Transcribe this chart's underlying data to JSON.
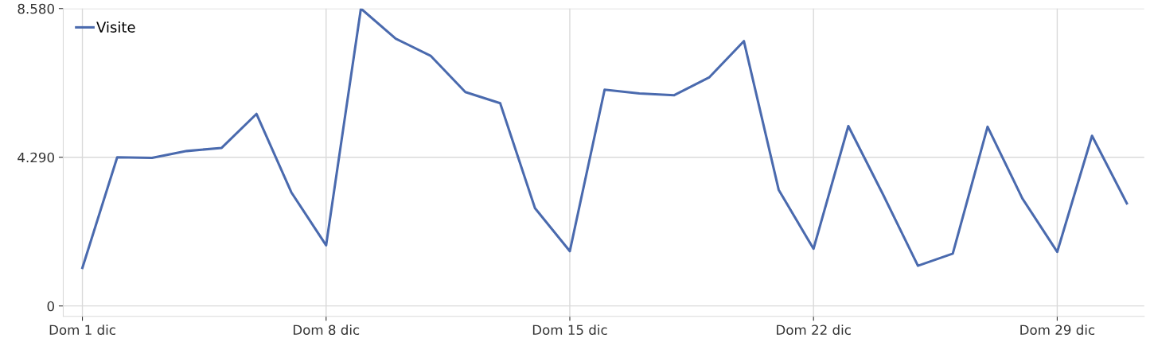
{
  "chart_data": {
    "type": "line",
    "categories": [
      "Dom 1 dic",
      null,
      null,
      null,
      null,
      null,
      null,
      "Dom 8 dic",
      null,
      null,
      null,
      null,
      null,
      null,
      "Dom 15 dic",
      null,
      null,
      null,
      null,
      null,
      null,
      "Dom 22 dic",
      null,
      null,
      null,
      null,
      null,
      null,
      "Dom 29 dic",
      null,
      null
    ],
    "series": [
      {
        "name": "Visite",
        "color": "#4a6aae",
        "values": [
          1100,
          4290,
          4270,
          4470,
          4560,
          5540,
          3280,
          1750,
          8580,
          7710,
          7220,
          6170,
          5850,
          2820,
          1580,
          6240,
          6130,
          6080,
          6590,
          7640,
          3350,
          1650,
          5190,
          3210,
          1160,
          1510,
          5170,
          3100,
          1560,
          4910,
          2960
        ]
      }
    ],
    "ylim": [
      -300,
      8580
    ],
    "yticks": [
      {
        "value": 0,
        "label": "0"
      },
      {
        "value": 4290,
        "label": "4.290"
      },
      {
        "value": 8580,
        "label": "8.580"
      }
    ],
    "grid": true,
    "legend": "top left",
    "marker": "none",
    "line_style": "solid"
  }
}
